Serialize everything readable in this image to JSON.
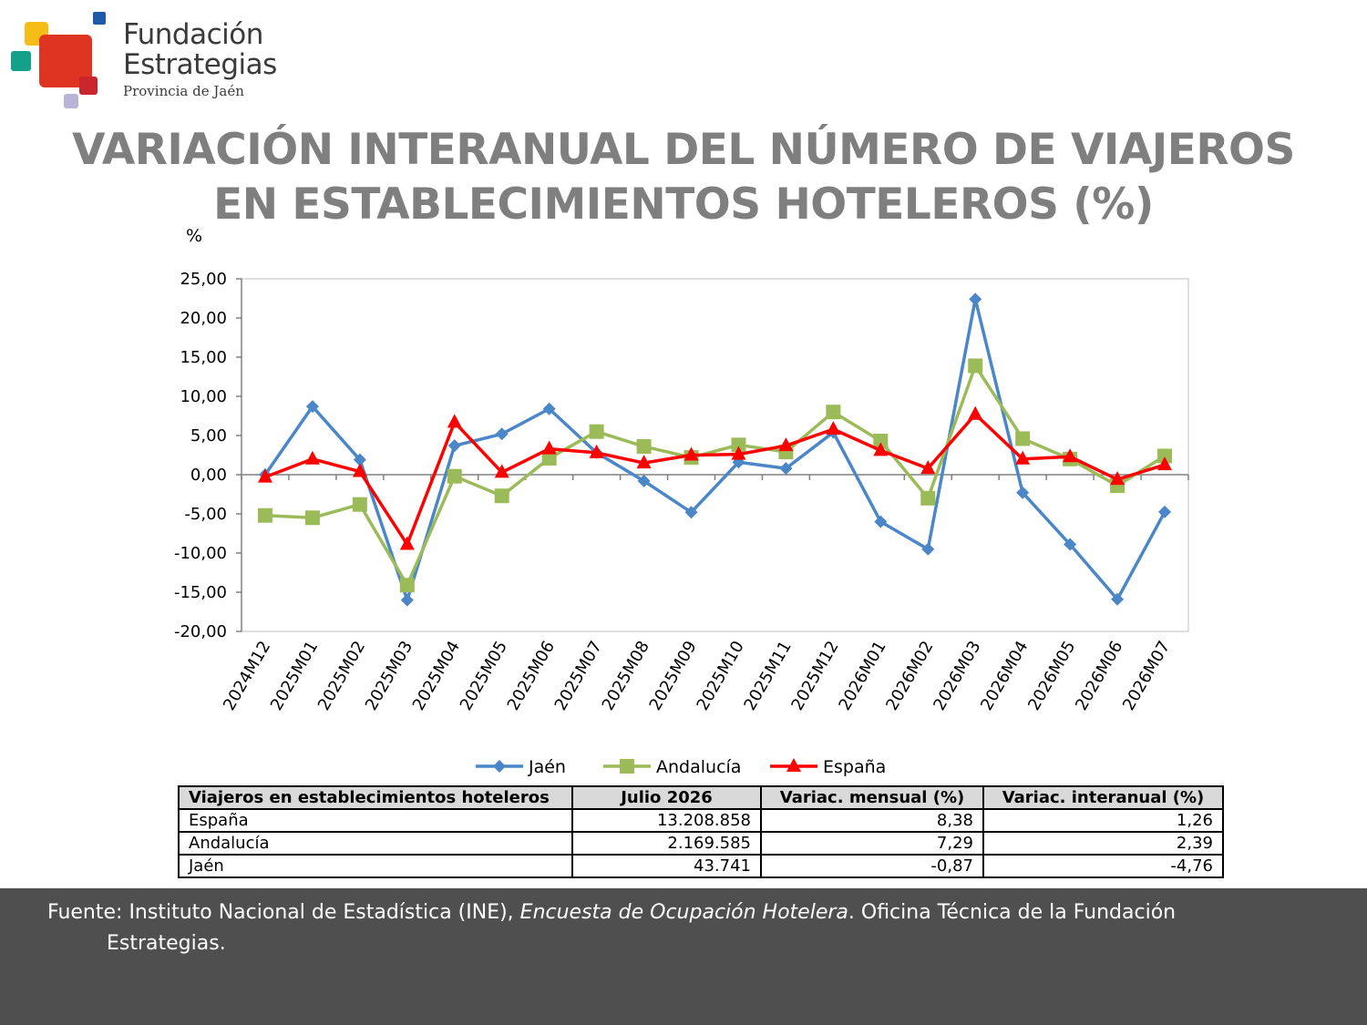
{
  "logo": {
    "line1": "Fundación",
    "line2": "Estrategias",
    "line3": "Provincia de Jaén"
  },
  "colors": {
    "title": "#7f7f7f",
    "jaen": "#4a86c8",
    "andalucia": "#9bbb59",
    "espana": "#ff0000",
    "footer": "#4f4f4f"
  },
  "chart_data": {
    "type": "line",
    "title": [
      "VARIACIÓN INTERANUAL DEL NÚMERO DE VIAJEROS",
      "EN ESTABLECIMIENTOS HOTELEROS (%)"
    ],
    "ylabel": "%",
    "xlabel": "",
    "ylim": [
      -20,
      25
    ],
    "yticks": [
      25,
      20,
      15,
      10,
      5,
      0,
      -5,
      -10,
      -15,
      -20
    ],
    "yticklabels": [
      "25,00",
      "20,00",
      "15,00",
      "10,00",
      "5,00",
      "0,00",
      "-5,00",
      "-10,00",
      "-15,00",
      "-20,00"
    ],
    "grid": false,
    "legend": "bottom",
    "categories": [
      "2024M12",
      "2025M01",
      "2025M02",
      "2025M03",
      "2025M04",
      "2025M05",
      "2025M06",
      "2025M07",
      "2025M08",
      "2025M09",
      "2025M10",
      "2025M11",
      "2025M12",
      "2026M01",
      "2026M02",
      "2026M03",
      "2026M04",
      "2026M05",
      "2026M06",
      "2026M07"
    ],
    "series": [
      {
        "name": "Jaén",
        "marker": "diamond",
        "color": "#4a86c8",
        "values": [
          0.0,
          8.7,
          1.9,
          -16.0,
          3.7,
          5.2,
          8.4,
          2.8,
          -0.8,
          -4.8,
          1.6,
          0.8,
          5.4,
          -6.0,
          -9.5,
          22.4,
          -2.3,
          -8.9,
          -15.9,
          -4.76
        ]
      },
      {
        "name": "Andalucía",
        "marker": "square",
        "color": "#9bbb59",
        "values": [
          -5.2,
          -5.5,
          -3.8,
          -14.1,
          -0.2,
          -2.7,
          2.1,
          5.5,
          3.6,
          2.2,
          3.8,
          2.9,
          8.0,
          4.3,
          -3.0,
          13.9,
          4.6,
          2.0,
          -1.4,
          2.39
        ]
      },
      {
        "name": "España",
        "marker": "triangle",
        "color": "#ff0000",
        "values": [
          -0.3,
          2.0,
          0.4,
          -8.9,
          6.7,
          0.3,
          3.3,
          2.8,
          1.5,
          2.5,
          2.6,
          3.7,
          5.8,
          3.1,
          0.8,
          7.7,
          2.0,
          2.3,
          -0.6,
          1.26
        ]
      }
    ]
  },
  "table": {
    "headers": [
      "Viajeros en establecimientos hoteleros",
      "Julio 2026",
      "Variac. mensual (%)",
      "Variac. interanual (%)"
    ],
    "rows": [
      [
        "España",
        "13.208.858",
        "8,38",
        "1,26"
      ],
      [
        "Andalucía",
        "2.169.585",
        "7,29",
        "2,39"
      ],
      [
        "Jaén",
        "43.741",
        "-0,87",
        "-4,76"
      ]
    ]
  },
  "footer": {
    "prefix": "Fuente: Instituto Nacional de Estadística (INE), ",
    "italic": "Encuesta de Ocupación Hotelera",
    "suffix": ". Oficina Técnica de la Fundación",
    "continuation": "Estrategias."
  }
}
